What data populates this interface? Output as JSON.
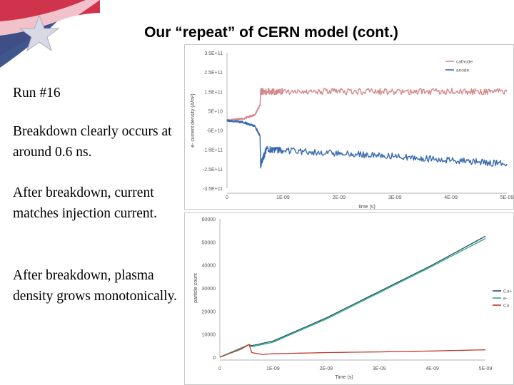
{
  "slide": {
    "title": "Our “repeat” of CERN model (cont.)",
    "paragraphs": [
      "Run #16",
      "Breakdown clearly occurs at around 0.6 ns.",
      "After breakdown, current matches injection current.",
      "After breakdown, plasma density grows monotonically."
    ]
  },
  "logo": {
    "icon": "flag-star-logo-icon",
    "colors": {
      "red": "#c8102e",
      "blue": "#1f3a7a"
    }
  },
  "chart_data": [
    {
      "type": "line",
      "title": "",
      "xlabel": "time (s)",
      "ylabel": "e- current density (A/m²)",
      "xlim": [
        0,
        5e-09
      ],
      "ylim": [
        -350000000000.0,
        350000000000.0
      ],
      "x_ticks": [
        "0",
        "1E-09",
        "2E-09",
        "3E-09",
        "4E-09",
        "5E-09"
      ],
      "y_ticks": [
        "3.5E+11",
        "2.5E+11",
        "1.5E+11",
        "5E+10",
        "-5E+10",
        "-1.5E+11",
        "-2.5E+11",
        "-3.5E+11"
      ],
      "legend_position": "top-right",
      "grid": false,
      "series": [
        {
          "name": "cathode",
          "color": "#d48a8a",
          "x": [
            0,
            3e-10,
            5e-10,
            5.9e-10,
            6e-10,
            6.5e-10,
            1e-09,
            2e-09,
            3e-09,
            4e-09,
            5e-09
          ],
          "y": [
            0,
            10000000000.0,
            30000000000.0,
            80000000000.0,
            150000000000.0,
            150000000000.0,
            150000000000.0,
            150000000000.0,
            150000000000.0,
            150000000000.0,
            150000000000.0
          ]
        },
        {
          "name": "anode",
          "color": "#3a6bb0",
          "x": [
            0,
            3e-10,
            5e-10,
            5.9e-10,
            6e-10,
            7e-10,
            1e-09,
            2e-09,
            3e-09,
            4e-09,
            5e-09
          ],
          "y": [
            0,
            -10000000000.0,
            -30000000000.0,
            -80000000000.0,
            -230000000000.0,
            -150000000000.0,
            -155000000000.0,
            -170000000000.0,
            -185000000000.0,
            -205000000000.0,
            -225000000000.0
          ]
        }
      ]
    },
    {
      "type": "line",
      "title": "",
      "xlabel": "Time (s)",
      "ylabel": "particle count",
      "xlim": [
        0,
        5e-09
      ],
      "ylim": [
        0,
        60000
      ],
      "x_ticks": [
        "0",
        "1E-09",
        "2E-09",
        "3E-09",
        "4E-09",
        "5E-09"
      ],
      "y_ticks": [
        "0",
        "10000",
        "20000",
        "30000",
        "40000",
        "50000",
        "60000"
      ],
      "legend_position": "right",
      "grid": false,
      "series": [
        {
          "name": "Cu+",
          "color": "#1f4e79",
          "x": [
            0,
            5.5e-10,
            6e-10,
            1e-09,
            2e-09,
            3e-09,
            4e-09,
            5e-09
          ],
          "y": [
            0,
            5500,
            5000,
            7000,
            17000,
            28500,
            40000,
            52500
          ]
        },
        {
          "name": "e-",
          "color": "#2aa87a",
          "x": [
            0,
            5.5e-10,
            6e-10,
            1e-09,
            2e-09,
            3e-09,
            4e-09,
            5e-09
          ],
          "y": [
            0,
            5500,
            4500,
            6500,
            16500,
            28000,
            39500,
            51500
          ]
        },
        {
          "name": "Cu",
          "color": "#c0392b",
          "x": [
            0,
            4e-10,
            5.5e-10,
            6e-10,
            8e-10,
            1e-09,
            2e-09,
            3e-09,
            4e-09,
            5e-09
          ],
          "y": [
            0,
            3500,
            5500,
            2000,
            1200,
            1500,
            2000,
            2300,
            2700,
            3200
          ]
        }
      ]
    }
  ]
}
